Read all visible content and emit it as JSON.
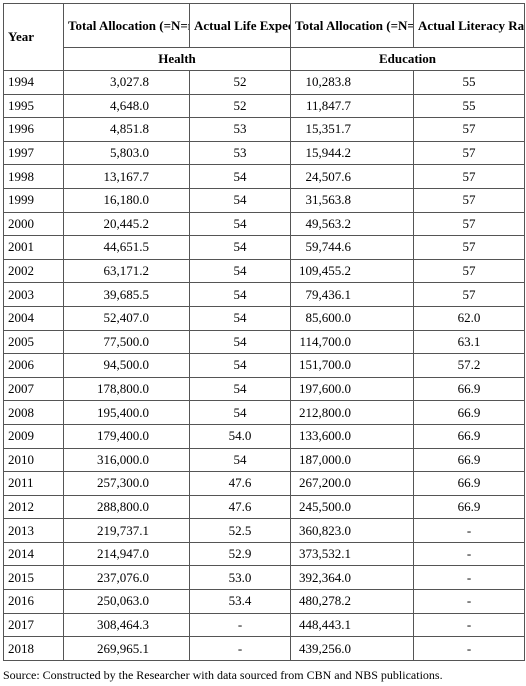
{
  "table": {
    "headers": [
      "Year",
      "Total Allocation (=N=m)",
      "Actual Life Expectancy",
      "Total Allocation (=N=m)",
      "Actual Literacy Rate in %"
    ],
    "groups": [
      "Health",
      "Education"
    ],
    "rows": [
      [
        "1994",
        "3,027.8",
        "52",
        "10,283.8",
        "55"
      ],
      [
        "1995",
        "4,648.0",
        "52",
        "11,847.7",
        "55"
      ],
      [
        "1996",
        "4,851.8",
        "53",
        "15,351.7",
        "57"
      ],
      [
        "1997",
        "5,803.0",
        "53",
        "15,944.2",
        "57"
      ],
      [
        "1998",
        "13,167.7",
        "54",
        "24,507.6",
        "57"
      ],
      [
        "1999",
        "16,180.0",
        "54",
        "31,563.8",
        "57"
      ],
      [
        "2000",
        "20,445.2",
        "54",
        "49,563.2",
        "57"
      ],
      [
        "2001",
        "44,651.5",
        "54",
        "59,744.6",
        "57"
      ],
      [
        "2002",
        "63,171.2",
        "54",
        "109,455.2",
        "57"
      ],
      [
        "2003",
        "39,685.5",
        "54",
        "79,436.1",
        "57"
      ],
      [
        "2004",
        "52,407.0",
        "54",
        "85,600.0",
        "62.0"
      ],
      [
        "2005",
        "77,500.0",
        "54",
        "114,700.0",
        "63.1"
      ],
      [
        "2006",
        "94,500.0",
        "54",
        "151,700.0",
        "57.2"
      ],
      [
        "2007",
        "178,800.0",
        "54",
        "197,600.0",
        "66.9"
      ],
      [
        "2008",
        "195,400.0",
        "54",
        "212,800.0",
        "66.9"
      ],
      [
        "2009",
        "179,400.0",
        "54.0",
        "133,600.0",
        "66.9"
      ],
      [
        "2010",
        "316,000.0",
        "54",
        "187,000.0",
        "66.9"
      ],
      [
        "2011",
        "257,300.0",
        "47.6",
        "267,200.0",
        "66.9"
      ],
      [
        "2012",
        "288,800.0",
        "47.6",
        "245,500.0",
        "66.9"
      ],
      [
        "2013",
        "219,737.1",
        "52.5",
        "360,823.0",
        "-"
      ],
      [
        "2014",
        "214,947.0",
        "52.9",
        "373,532.1",
        "-"
      ],
      [
        "2015",
        "237,076.0",
        "53.0",
        "392,364.0",
        "-"
      ],
      [
        "2016",
        "250,063.0",
        "53.4",
        "480,278.2",
        "-"
      ],
      [
        "2017",
        "308,464.3",
        "-",
        "448,443.1",
        "-"
      ],
      [
        "2018",
        "269,965.1",
        "-",
        "439,256.0",
        "-"
      ]
    ]
  },
  "source": "Source: Constructed by the Researcher with data sourced from CBN and NBS publications."
}
